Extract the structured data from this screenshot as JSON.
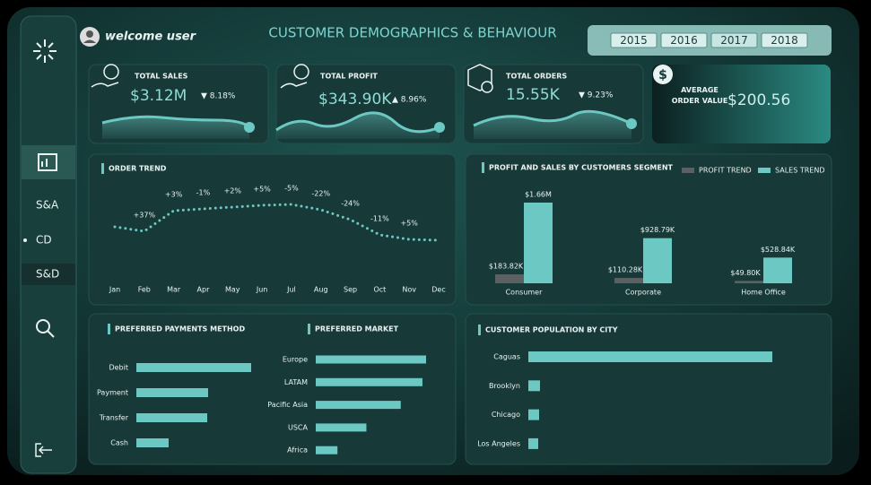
{
  "header": {
    "welcome": "welcome user",
    "title": "CUSTOMER DEMOGRAPHICS & BEHAVIOUR",
    "years": [
      "2015",
      "2016",
      "2017",
      "2018"
    ]
  },
  "nav": [
    "S&A",
    "CD",
    "S&D"
  ],
  "kpis": [
    {
      "label": "TOTAL SALES",
      "value": "$3.12M",
      "change": "▼ 8.18%"
    },
    {
      "label": "TOTAL PROFIT",
      "value": "$343.90K",
      "change": "▲ 8.96%"
    },
    {
      "label": "TOTAL ORDERS",
      "value": "15.55K",
      "change": "▼ 9.23%"
    },
    {
      "label": "AVERAGE ORDER VALUE",
      "value": "$200.56"
    }
  ],
  "chart_data": [
    {
      "type": "line",
      "title": "ORDER TREND",
      "color": "#6cc8c2",
      "categories": [
        "Jan",
        "Feb",
        "Mar",
        "Apr",
        "May",
        "Jun",
        "Jul",
        "Aug",
        "Sep",
        "Oct",
        "Nov",
        "Dec"
      ],
      "values": [
        1200,
        1150,
        1380,
        1400,
        1420,
        1440,
        1450,
        1390,
        1280,
        1110,
        1060,
        1050
      ],
      "annotations": [
        null,
        "+37%",
        "+3%",
        "-1%",
        "+2%",
        "+5%",
        "-5%",
        "-22%",
        "-24%",
        "-11%",
        "+5%",
        null
      ]
    },
    {
      "type": "bar",
      "title": "PROFIT  AND SALES BY CUSTOMERS SEGMENT",
      "categories": [
        "Consumer",
        "Corporate",
        "Home Office"
      ],
      "series": [
        {
          "name": "PROFIT TREND",
          "color": "#5b6062",
          "values": [
            183820,
            110280,
            49800
          ],
          "value_labels": [
            "$183.82K",
            "$110.28K",
            "$49.80K"
          ]
        },
        {
          "name": "SALES TREND",
          "color": "#6cc8c2",
          "values": [
            1660000,
            928790,
            528840
          ],
          "value_labels": [
            "$1.66M",
            "$928.79K",
            "$528.84K"
          ]
        }
      ]
    },
    {
      "type": "hbar",
      "title": "PREFERRED PAYMENTS METHOD",
      "color": "#6cc8c2",
      "categories": [
        "Debit",
        "Payment",
        "Transfer",
        "Cash"
      ],
      "values": [
        128,
        80,
        79,
        36
      ]
    },
    {
      "type": "hbar",
      "title": "PREFERRED MARKET",
      "color": "#6cc8c2",
      "categories": [
        "Europe",
        "LATAM",
        "Pacific Asia",
        "USCA",
        "Africa"
      ],
      "values": [
        122,
        118,
        94,
        56,
        24
      ]
    },
    {
      "type": "hbar",
      "title": "CUSTOMER POPULATION BY CITY",
      "color": "#6cc8c2",
      "categories": [
        "Caguas",
        "Brooklyn",
        "Chicago",
        "Los Angeles"
      ],
      "values": [
        272,
        13,
        12,
        11
      ]
    }
  ]
}
